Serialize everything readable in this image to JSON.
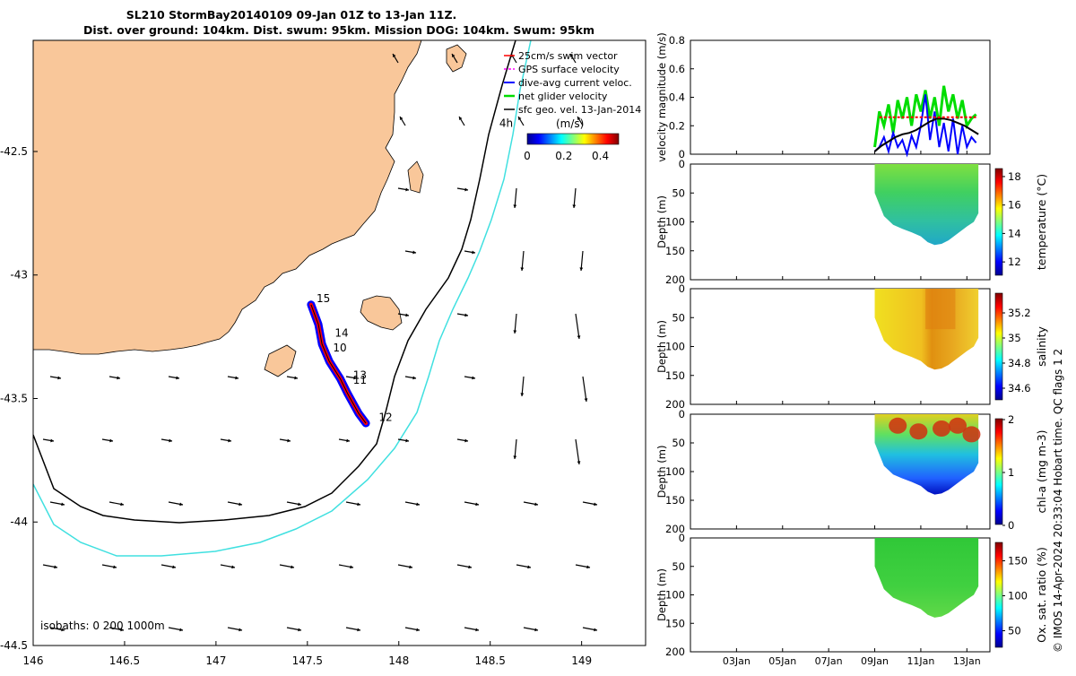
{
  "title_line1": "SL210 StormBay20140109 09-Jan 01Z to 13-Jan 11Z.",
  "title_line2": "Dist. over ground: 104km. Dist. swum: 95km. Mission DOG: 104km. Swum: 95km",
  "copyright": "© IMOS 14-Apr-2024 20:33:04 Hobart time. QC flags 1  2",
  "colors": {
    "land": "#f9c79a",
    "isobath_200": "#000000",
    "isobath_1000": "#40e0e0",
    "swim": "#ff0000",
    "gps": "#ff00ff",
    "dive_avg": "#0000ff",
    "net": "#00dd00",
    "sfc_geo": "#000000"
  },
  "chart_data": [
    {
      "type": "scatter",
      "name": "map",
      "xlim": [
        146.0,
        149.35
      ],
      "ylim": [
        -44.5,
        -42.05
      ],
      "xticks": [
        146,
        146.5,
        147,
        147.5,
        148,
        148.5,
        149
      ],
      "xtick_labels": [
        "146",
        "146.5",
        "147",
        "147.5",
        "148",
        "148.5",
        "149"
      ],
      "yticks": [
        -42.5,
        -43,
        -43.5,
        -44,
        -44.5
      ],
      "ytick_labels": [
        "-42.5",
        "-43",
        "-43.5",
        "-44",
        "-44.5"
      ],
      "legend": {
        "placement": "top-right",
        "entries": [
          "25cm/s swim vector",
          "GPS surface velocity",
          "dive-avg current veloc.",
          "net glider velocity",
          "sfc geo. vel. 13-Jan-2014"
        ]
      },
      "colorbar": {
        "label": "(m/s)",
        "range": [
          0,
          0.5
        ],
        "ticks": [
          "0",
          "0.2",
          "0.4"
        ]
      },
      "isobath_label": "isobaths: 0   200   1000m",
      "track": [
        [
          147.52,
          -43.12
        ],
        [
          147.56,
          -43.2
        ],
        [
          147.58,
          -43.28
        ],
        [
          147.62,
          -43.35
        ],
        [
          147.68,
          -43.42
        ],
        [
          147.72,
          -43.48
        ],
        [
          147.78,
          -43.56
        ],
        [
          147.82,
          -43.6
        ]
      ],
      "track_labels": [
        {
          "text": "15",
          "lon": 147.55,
          "lat": -43.11
        },
        {
          "text": "14",
          "lon": 147.65,
          "lat": -43.25
        },
        {
          "text": "10",
          "lon": 147.64,
          "lat": -43.31
        },
        {
          "text": "13",
          "lon": 147.75,
          "lat": -43.42
        },
        {
          "text": "11",
          "lon": 147.75,
          "lat": -43.44
        },
        {
          "text": "12",
          "lon": 147.89,
          "lat": -43.59
        },
        {
          "text": "4h",
          "lon": 148.55,
          "lat": -42.4
        }
      ]
    },
    {
      "type": "line",
      "name": "velocity magnitude",
      "ylabel": "velocity magnitude (m/s)",
      "xlim": [
        1.0,
        14.0
      ],
      "ylim": [
        0,
        0.8
      ],
      "yticks": [
        0,
        0.2,
        0.4,
        0.6,
        0.8
      ],
      "ytick_labels": [
        "0",
        "0.2",
        "0.4",
        "0.6",
        "0.8"
      ],
      "series": [
        {
          "color": "#00dd00",
          "x": [
            9.0,
            9.2,
            9.4,
            9.6,
            9.8,
            10.0,
            10.2,
            10.4,
            10.6,
            10.8,
            11.0,
            11.2,
            11.4,
            11.6,
            11.8,
            12.0,
            12.2,
            12.4,
            12.6,
            12.8,
            13.0,
            13.2,
            13.4
          ],
          "y": [
            0.05,
            0.3,
            0.2,
            0.35,
            0.15,
            0.38,
            0.25,
            0.4,
            0.2,
            0.42,
            0.3,
            0.45,
            0.25,
            0.4,
            0.2,
            0.48,
            0.3,
            0.42,
            0.25,
            0.38,
            0.2,
            0.25,
            0.28
          ]
        },
        {
          "color": "#0000ff",
          "x": [
            9.0,
            9.2,
            9.4,
            9.6,
            9.8,
            10.0,
            10.2,
            10.4,
            10.6,
            10.8,
            11.0,
            11.2,
            11.4,
            11.6,
            11.8,
            12.0,
            12.2,
            12.4,
            12.6,
            12.8,
            13.0,
            13.2,
            13.4
          ],
          "y": [
            0.02,
            0.05,
            0.12,
            0.02,
            0.15,
            0.05,
            0.1,
            0.0,
            0.13,
            0.05,
            0.2,
            0.42,
            0.1,
            0.3,
            0.05,
            0.22,
            0.02,
            0.25,
            0.0,
            0.2,
            0.05,
            0.12,
            0.08
          ]
        },
        {
          "color": "#000000",
          "x": [
            9.0,
            9.3,
            9.6,
            9.9,
            10.2,
            10.5,
            10.8,
            11.1,
            11.4,
            11.7,
            12.0,
            12.3,
            12.6,
            12.9,
            13.2,
            13.5
          ],
          "y": [
            0.02,
            0.06,
            0.09,
            0.12,
            0.14,
            0.15,
            0.17,
            0.2,
            0.23,
            0.25,
            0.25,
            0.24,
            0.22,
            0.2,
            0.17,
            0.14
          ]
        },
        {
          "color": "#ff0000",
          "x": [
            9.2,
            9.5,
            9.8,
            10.1,
            10.4,
            10.7,
            11.0,
            11.3,
            11.6,
            11.9,
            12.2,
            12.5,
            12.8,
            13.1,
            13.4
          ],
          "y": [
            0.26,
            0.26,
            0.26,
            0.26,
            0.26,
            0.26,
            0.26,
            0.26,
            0.26,
            0.26,
            0.26,
            0.26,
            0.26,
            0.26,
            0.26
          ]
        }
      ]
    },
    {
      "type": "heatmap",
      "name": "temperature",
      "ylabel": "Depth (m)",
      "cbar_label": "temperature (°C)",
      "clim": [
        11,
        18.5
      ],
      "cticks": [
        12,
        14,
        16,
        18
      ],
      "cticks_labels": [
        "12",
        "14",
        "16",
        "18"
      ],
      "ylim": [
        0,
        200
      ],
      "yticks": [
        0,
        50,
        100,
        150,
        200
      ],
      "ytick_labels": [
        "0",
        "50",
        "100",
        "150",
        "200"
      ],
      "colorscale": "jet"
    },
    {
      "type": "heatmap",
      "name": "salinity",
      "ylabel": "Depth (m)",
      "cbar_label": "salinity",
      "clim": [
        34.5,
        35.35
      ],
      "cticks": [
        34.6,
        34.8,
        35,
        35.2
      ],
      "cticks_labels": [
        "34.6",
        "34.8",
        "35",
        "35.2"
      ],
      "ylim": [
        0,
        200
      ],
      "yticks": [
        0,
        50,
        100,
        150,
        200
      ],
      "ytick_labels": [
        "0",
        "50",
        "100",
        "150",
        "200"
      ],
      "colorscale": "jet"
    },
    {
      "type": "heatmap",
      "name": "chl-a",
      "ylabel": "Depth (m)",
      "cbar_label": "chl-a (mg m-3)",
      "clim": [
        0,
        2
      ],
      "cticks": [
        0,
        1,
        2
      ],
      "cticks_labels": [
        "0",
        "1",
        "2"
      ],
      "ylim": [
        0,
        200
      ],
      "yticks": [
        0,
        50,
        100,
        150,
        200
      ],
      "ytick_labels": [
        "0",
        "50",
        "100",
        "150",
        "200"
      ],
      "colorscale": "jet"
    },
    {
      "type": "heatmap",
      "name": "oxygen",
      "ylabel": "Depth (m)",
      "cbar_label": "Ox. sat. ratio (%)",
      "clim": [
        25,
        175
      ],
      "cticks": [
        50,
        100,
        150
      ],
      "cticks_labels": [
        "50",
        "100",
        "150"
      ],
      "ylim": [
        0,
        200
      ],
      "yticks": [
        0,
        50,
        100,
        150,
        200
      ],
      "ytick_labels": [
        "0",
        "50",
        "100",
        "150",
        "200"
      ],
      "colorscale": "jet",
      "xlim": [
        1.0,
        14.0
      ],
      "xticks": [
        3,
        5,
        7,
        9,
        11,
        13
      ],
      "xtick_labels": [
        "03Jan",
        "05Jan",
        "07Jan",
        "09Jan",
        "11Jan",
        "13Jan"
      ]
    }
  ]
}
